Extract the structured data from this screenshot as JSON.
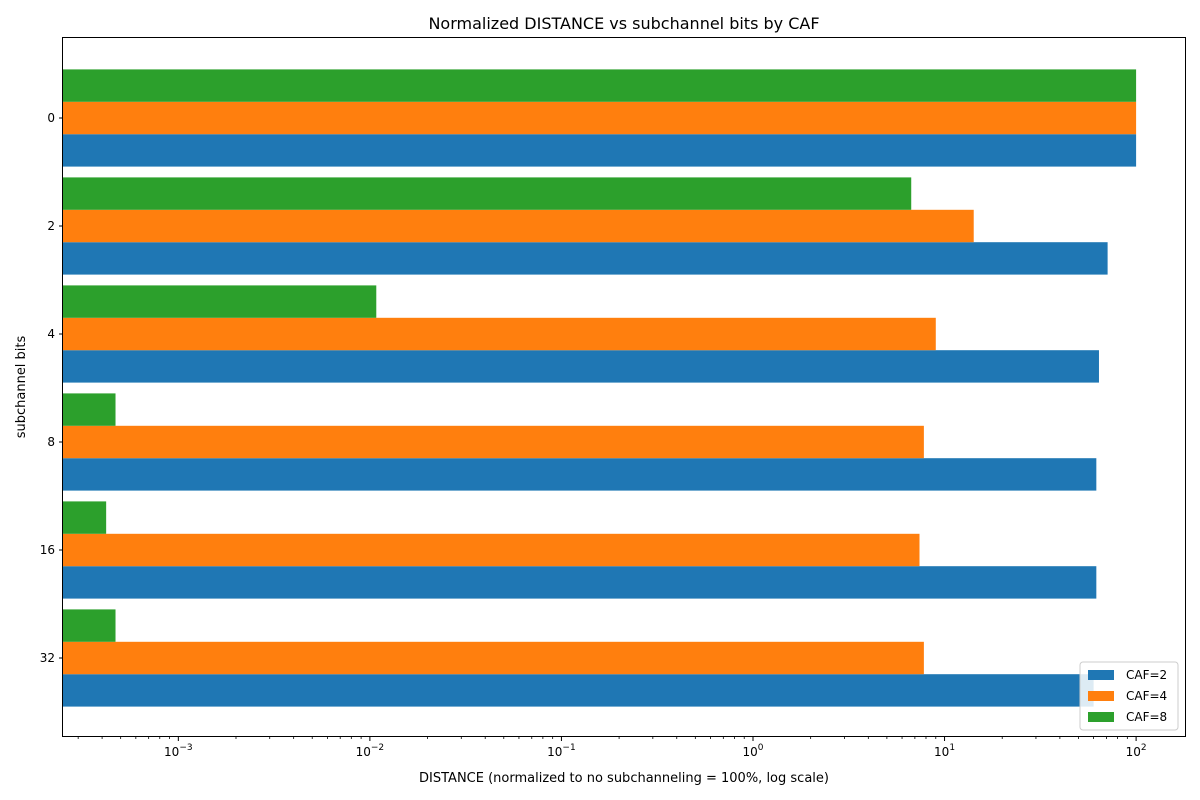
{
  "chart_data": {
    "type": "bar",
    "orientation": "horizontal",
    "title": "Normalized DISTANCE vs subchannel bits by CAF",
    "xlabel": "DISTANCE (normalized to no subchanneling = 100%, log scale)",
    "ylabel": "subchannel bits",
    "x_scale": "log",
    "xlim": [
      0.00025,
      180
    ],
    "x_ticks": [
      0.001,
      0.01,
      0.1,
      1,
      10,
      100
    ],
    "x_tick_labels": [
      {
        "base": "10",
        "exp": "−3"
      },
      {
        "base": "10",
        "exp": "−2"
      },
      {
        "base": "10",
        "exp": "−1"
      },
      {
        "base": "10",
        "exp": "0"
      },
      {
        "base": "10",
        "exp": "1"
      },
      {
        "base": "10",
        "exp": "2"
      }
    ],
    "categories": [
      "0",
      "2",
      "4",
      "8",
      "16",
      "32"
    ],
    "series": [
      {
        "name": "CAF=2",
        "color": "#1f77b4",
        "values": [
          100,
          71,
          64,
          62,
          62,
          60
        ]
      },
      {
        "name": "CAF=4",
        "color": "#ff7f0e",
        "values": [
          100,
          14.2,
          9.0,
          7.8,
          7.4,
          7.8
        ]
      },
      {
        "name": "CAF=8",
        "color": "#2ca02c",
        "values": [
          100,
          6.7,
          0.0108,
          0.00047,
          0.00042,
          0.00047
        ]
      }
    ],
    "legend_position": "lower-right",
    "grid": false
  }
}
